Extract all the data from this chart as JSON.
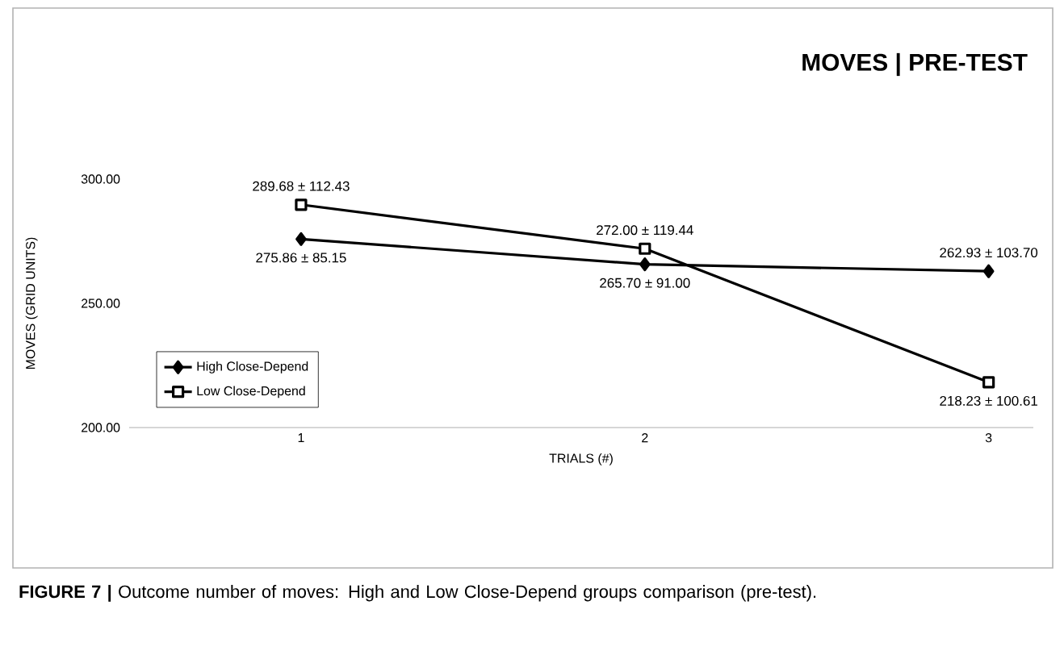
{
  "chart_data": {
    "type": "line",
    "title": "MOVES | PRE-TEST",
    "xlabel": "TRIALS (#)",
    "ylabel": "MOVES (GRID UNITS)",
    "categories": [
      "1",
      "2",
      "3"
    ],
    "series": [
      {
        "name": "High Close-Depend",
        "color": "#000000",
        "marker": "diamond",
        "values": [
          275.86,
          265.7,
          262.93
        ],
        "value_labels": [
          "275.86 ± 85.15",
          "265.70 ± 91.00",
          "262.93 ± 103.70"
        ]
      },
      {
        "name": "Low Close-Depend",
        "color": "#000000",
        "marker": "square",
        "values": [
          289.68,
          272.0,
          218.23
        ],
        "value_labels": [
          "289.68 ± 112.43",
          "272.00 ± 119.44",
          "218.23 ± 100.61"
        ]
      }
    ],
    "ylim": [
      200,
      300
    ],
    "yticks": [
      {
        "value": 200,
        "label": "200.00"
      },
      {
        "value": 250,
        "label": "250.00"
      },
      {
        "value": 300,
        "label": "300.00"
      }
    ],
    "legend": "bottom left",
    "grid": false,
    "line_style": "solid",
    "annotations": [
      "**FIGURE 7 |** Outcome number of moves: High and Low Close-Depend groups comparison (pre-test)."
    ]
  }
}
